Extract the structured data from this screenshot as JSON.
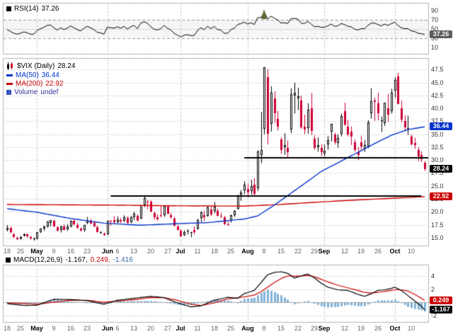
{
  "panels": {
    "rsi": {
      "legend_label": "RSI(14)",
      "legend_value": "37.26",
      "badge": "37.26",
      "axis_ticks": [
        "90",
        "70",
        "50",
        "30",
        "10"
      ]
    },
    "price": {
      "symbol_label": "$VIX (Daily)",
      "symbol_value": "28.24",
      "ma50_label": "MA(50)",
      "ma50_value": "36.44",
      "ma200_label": "MA(200)",
      "ma200_value": "22.92",
      "volume_label": "Volume",
      "volume_value": "undef",
      "badges": {
        "ma50": "36.44",
        "close": "28.24",
        "ma200": "22.92"
      },
      "axis_ticks": [
        "47.5",
        "45.0",
        "42.5",
        "40.0",
        "37.5",
        "35.0",
        "32.5",
        "30.0",
        "27.5",
        "25.0",
        "22.5",
        "20.0",
        "17.5",
        "15.0"
      ]
    },
    "macd": {
      "legend_label": "MACD(12,26,9)",
      "macd_value": "-1.167,",
      "signal_value": "0.249,",
      "hist_value": "-1.416",
      "badges": {
        "signal": "0.249",
        "macd": "-1.167"
      },
      "axis_ticks": [
        "4",
        "2",
        "0",
        "-2"
      ]
    }
  },
  "colors": {
    "up": "#000000",
    "down": "#cc0033",
    "ma50": "#0033cc",
    "ma200": "#cc0000",
    "macd": "#000000",
    "signal": "#cc0000",
    "histogram": "#7fb2d9",
    "rsi": "#000000",
    "trendline": "#000000",
    "badge_gray": "#5c5c5c",
    "badge_black": "#000000",
    "grid": "#e8e8e8",
    "month_grid": "#c9c9c9",
    "minor_grid": "#efefef",
    "panel_border": "#b3b3b3",
    "volume_chip": "#3355bb",
    "arrow": "#556b2f"
  },
  "chart_data": {
    "type": "candlestick",
    "symbol": "$VIX",
    "period": "Daily",
    "axes": {
      "price": {
        "min": 13.6,
        "max": 49.2
      },
      "rsi": {
        "min": 0,
        "max": 100
      },
      "macd": {
        "min": -2.9,
        "max": 5.3
      }
    },
    "x_ticks": [
      {
        "i": 0,
        "label": "18",
        "month": false
      },
      {
        "i": 4,
        "label": "25",
        "month": false
      },
      {
        "i": 9,
        "label": "May",
        "month": true
      },
      {
        "i": 14,
        "label": "9",
        "month": false
      },
      {
        "i": 19,
        "label": "16",
        "month": false
      },
      {
        "i": 24,
        "label": "23",
        "month": false
      },
      {
        "i": 30,
        "label": "Jun",
        "month": true
      },
      {
        "i": 33,
        "label": "6",
        "month": false
      },
      {
        "i": 38,
        "label": "13",
        "month": false
      },
      {
        "i": 43,
        "label": "20",
        "month": false
      },
      {
        "i": 48,
        "label": "27",
        "month": false
      },
      {
        "i": 52,
        "label": "Jul",
        "month": true
      },
      {
        "i": 57,
        "label": "11",
        "month": false
      },
      {
        "i": 62,
        "label": "18",
        "month": false
      },
      {
        "i": 67,
        "label": "25",
        "month": false
      },
      {
        "i": 72,
        "label": "Aug",
        "month": true
      },
      {
        "i": 77,
        "label": "8",
        "month": false
      },
      {
        "i": 82,
        "label": "15",
        "month": false
      },
      {
        "i": 87,
        "label": "22",
        "month": false
      },
      {
        "i": 92,
        "label": "29",
        "month": false
      },
      {
        "i": 95,
        "label": "Sep",
        "month": true
      },
      {
        "i": 101,
        "label": "12",
        "month": false
      },
      {
        "i": 106,
        "label": "19",
        "month": false
      },
      {
        "i": 111,
        "label": "26",
        "month": false
      },
      {
        "i": 116,
        "label": "Oct",
        "month": true
      },
      {
        "i": 121,
        "label": "10",
        "month": false
      }
    ],
    "candles": [
      [
        16.5,
        17.4,
        16.2,
        16.9
      ],
      [
        16.9,
        17.1,
        15.8,
        16.0
      ],
      [
        15.6,
        15.9,
        15.0,
        15.1
      ],
      [
        15.0,
        15.2,
        14.5,
        14.7
      ],
      [
        14.8,
        15.3,
        14.6,
        15.1
      ],
      [
        15.4,
        15.8,
        15.2,
        15.6
      ],
      [
        15.6,
        15.8,
        15.0,
        15.2
      ],
      [
        15.1,
        15.3,
        14.6,
        14.8
      ],
      [
        14.8,
        15.0,
        14.4,
        14.8
      ],
      [
        14.9,
        16.0,
        14.6,
        16.0
      ],
      [
        16.1,
        16.8,
        15.9,
        16.7
      ],
      [
        16.8,
        17.3,
        16.3,
        17.1
      ],
      [
        17.2,
        18.2,
        16.9,
        18.1
      ],
      [
        17.9,
        18.4,
        17.2,
        18.4
      ],
      [
        18.2,
        18.4,
        17.1,
        17.2
      ],
      [
        17.0,
        17.2,
        16.2,
        16.4
      ],
      [
        16.5,
        17.3,
        16.0,
        17.1
      ],
      [
        17.2,
        17.6,
        16.4,
        16.5
      ],
      [
        16.6,
        17.6,
        16.3,
        17.1
      ],
      [
        17.2,
        18.3,
        17.0,
        18.2
      ],
      [
        18.3,
        18.6,
        17.4,
        17.6
      ],
      [
        17.5,
        17.8,
        16.7,
        16.9
      ],
      [
        16.7,
        17.0,
        16.2,
        16.4
      ],
      [
        16.5,
        17.5,
        16.1,
        17.4
      ],
      [
        17.8,
        19.0,
        17.6,
        18.3
      ],
      [
        18.2,
        18.6,
        17.6,
        17.7
      ],
      [
        17.9,
        18.2,
        17.0,
        17.1
      ],
      [
        17.0,
        17.3,
        16.0,
        16.1
      ],
      [
        16.0,
        16.2,
        15.7,
        16.0
      ],
      [
        15.8,
        16.0,
        15.3,
        15.5
      ],
      [
        15.6,
        18.3,
        15.5,
        18.3
      ],
      [
        18.2,
        18.4,
        17.3,
        18.1
      ],
      [
        18.4,
        19.2,
        17.6,
        18.0
      ],
      [
        18.0,
        19.1,
        17.8,
        18.5
      ],
      [
        18.4,
        18.8,
        17.8,
        18.1
      ],
      [
        18.3,
        19.3,
        18.0,
        19.0
      ],
      [
        18.8,
        19.1,
        17.7,
        17.8
      ],
      [
        18.0,
        19.2,
        17.8,
        18.9
      ],
      [
        19.0,
        20.0,
        18.4,
        19.6
      ],
      [
        19.2,
        19.5,
        18.2,
        18.3
      ],
      [
        18.7,
        21.3,
        18.6,
        21.3
      ],
      [
        21.3,
        23.2,
        20.9,
        22.7
      ],
      [
        22.0,
        22.3,
        20.5,
        21.9
      ],
      [
        21.9,
        22.2,
        19.9,
        20.0
      ],
      [
        19.7,
        20.0,
        18.5,
        18.9
      ],
      [
        18.9,
        19.5,
        18.3,
        18.5
      ],
      [
        19.4,
        21.1,
        18.9,
        19.3
      ],
      [
        19.3,
        21.2,
        19.0,
        21.1
      ],
      [
        21.0,
        21.3,
        19.5,
        19.6
      ],
      [
        19.4,
        19.8,
        18.6,
        18.9
      ],
      [
        18.7,
        19.0,
        17.2,
        17.3
      ],
      [
        17.1,
        17.4,
        16.4,
        16.5
      ],
      [
        16.3,
        16.6,
        15.2,
        15.3
      ],
      [
        15.5,
        16.4,
        15.3,
        16.1
      ],
      [
        16.2,
        16.6,
        15.6,
        16.3
      ],
      [
        15.9,
        16.1,
        15.1,
        16.0
      ],
      [
        16.5,
        17.2,
        15.6,
        16.0
      ],
      [
        16.8,
        18.6,
        16.5,
        18.4
      ],
      [
        18.8,
        20.1,
        18.0,
        19.9
      ],
      [
        19.3,
        20.2,
        18.2,
        18.9
      ],
      [
        19.2,
        21.1,
        19.0,
        20.8
      ],
      [
        20.5,
        21.0,
        19.2,
        19.5
      ],
      [
        20.2,
        21.9,
        19.7,
        21.0
      ],
      [
        20.2,
        20.6,
        19.1,
        19.2
      ],
      [
        19.2,
        19.8,
        18.8,
        19.1
      ],
      [
        18.9,
        19.2,
        17.5,
        17.6
      ],
      [
        17.6,
        18.1,
        17.3,
        17.5
      ],
      [
        18.2,
        19.4,
        17.9,
        19.4
      ],
      [
        19.3,
        20.3,
        19.0,
        20.2
      ],
      [
        20.6,
        23.3,
        20.4,
        23.0
      ],
      [
        23.3,
        24.2,
        22.1,
        23.7
      ],
      [
        24.2,
        25.9,
        23.4,
        25.3
      ],
      [
        24.4,
        25.4,
        22.8,
        23.7
      ],
      [
        24.0,
        26.2,
        23.3,
        24.9
      ],
      [
        25.3,
        26.5,
        23.2,
        23.4
      ],
      [
        24.5,
        31.9,
        24.0,
        31.7
      ],
      [
        31.0,
        39.3,
        29.4,
        32.0
      ],
      [
        36.0,
        48.0,
        35.0,
        48.0
      ],
      [
        46.0,
        47.6,
        33.0,
        35.1
      ],
      [
        37.0,
        44.3,
        35.5,
        43.0
      ],
      [
        42.0,
        43.3,
        37.2,
        39.0
      ],
      [
        38.0,
        39.5,
        35.7,
        36.4
      ],
      [
        34.0,
        34.4,
        31.2,
        31.9
      ],
      [
        32.5,
        35.2,
        31.0,
        32.9
      ],
      [
        32.4,
        33.8,
        30.6,
        31.6
      ],
      [
        35.9,
        43.9,
        35.2,
        42.7
      ],
      [
        42.5,
        45.0,
        39.0,
        43.1
      ],
      [
        42.0,
        44.0,
        39.7,
        42.4
      ],
      [
        41.5,
        42.5,
        36.0,
        36.3
      ],
      [
        36.5,
        38.8,
        35.0,
        35.9
      ],
      [
        36.2,
        41.0,
        35.1,
        39.8
      ],
      [
        40.0,
        43.0,
        34.9,
        35.6
      ],
      [
        34.2,
        34.8,
        32.0,
        32.3
      ],
      [
        32.5,
        34.4,
        31.6,
        32.9
      ],
      [
        32.3,
        33.1,
        30.8,
        31.6
      ],
      [
        31.2,
        33.0,
        30.7,
        31.8
      ],
      [
        33.0,
        34.6,
        32.0,
        33.9
      ],
      [
        35.5,
        37.0,
        33.6,
        37.0
      ],
      [
        34.9,
        35.3,
        33.0,
        33.4
      ],
      [
        33.3,
        35.0,
        32.4,
        34.3
      ],
      [
        35.1,
        39.0,
        34.6,
        38.5
      ],
      [
        39.5,
        41.1,
        36.6,
        36.9
      ],
      [
        36.5,
        37.8,
        34.6,
        35.0
      ],
      [
        35.5,
        36.5,
        32.9,
        34.6
      ],
      [
        33.5,
        34.0,
        31.6,
        32.0
      ],
      [
        31.6,
        32.5,
        30.0,
        31.0
      ],
      [
        33.4,
        34.7,
        32.0,
        32.7
      ],
      [
        32.2,
        33.9,
        31.6,
        32.9
      ],
      [
        32.7,
        37.7,
        32.3,
        37.3
      ],
      [
        39.0,
        43.9,
        38.0,
        41.4
      ],
      [
        41.5,
        42.1,
        37.6,
        41.3
      ],
      [
        41.0,
        43.0,
        37.7,
        39.0
      ],
      [
        37.5,
        38.4,
        35.4,
        37.7
      ],
      [
        37.2,
        41.1,
        36.6,
        41.1
      ],
      [
        40.0,
        42.8,
        37.4,
        38.8
      ],
      [
        39.5,
        43.8,
        39.0,
        43.0
      ],
      [
        43.5,
        46.0,
        42.1,
        45.5
      ],
      [
        46.2,
        46.9,
        40.8,
        40.8
      ],
      [
        40.0,
        41.5,
        37.3,
        37.8
      ],
      [
        37.5,
        38.7,
        35.8,
        36.3
      ],
      [
        36.0,
        38.6,
        34.9,
        36.2
      ],
      [
        34.5,
        34.9,
        32.9,
        33.0
      ],
      [
        33.3,
        34.3,
        32.2,
        32.9
      ],
      [
        32.0,
        32.5,
        29.8,
        30.7
      ],
      [
        31.0,
        31.7,
        29.6,
        30.2
      ],
      [
        29.5,
        29.8,
        27.9,
        28.24
      ]
    ],
    "rsi14": [
      48,
      44,
      40,
      38,
      40,
      43,
      41,
      38,
      38,
      46,
      50,
      53,
      57,
      58,
      52,
      47,
      52,
      48,
      51,
      56,
      52,
      48,
      45,
      51,
      55,
      52,
      48,
      42,
      41,
      38,
      53,
      52,
      51,
      54,
      51,
      55,
      49,
      54,
      57,
      50,
      62,
      65,
      62,
      54,
      49,
      47,
      50,
      57,
      51,
      47,
      40,
      36,
      32,
      36,
      37,
      35,
      35,
      46,
      52,
      48,
      55,
      50,
      55,
      48,
      47,
      40,
      40,
      48,
      51,
      59,
      61,
      64,
      60,
      63,
      59,
      74,
      74,
      86,
      71,
      77,
      73,
      69,
      62,
      63,
      61,
      72,
      72,
      71,
      62,
      61,
      66,
      60,
      54,
      55,
      53,
      53,
      56,
      60,
      55,
      56,
      61,
      59,
      55,
      54,
      49,
      47,
      50,
      50,
      57,
      62,
      62,
      59,
      56,
      60,
      57,
      61,
      64,
      57,
      52,
      50,
      50,
      45,
      44,
      40,
      39,
      37.26
    ],
    "ma50": [
      [
        0,
        20.6
      ],
      [
        9,
        19.9
      ],
      [
        19,
        18.7
      ],
      [
        29,
        17.8
      ],
      [
        40,
        17.4
      ],
      [
        51,
        17.7
      ],
      [
        60,
        17.9
      ],
      [
        71,
        18.6
      ],
      [
        75,
        19.2
      ],
      [
        80,
        21.3
      ],
      [
        85,
        23.6
      ],
      [
        90,
        25.9
      ],
      [
        94,
        27.8
      ],
      [
        100,
        29.8
      ],
      [
        105,
        31.5
      ],
      [
        110,
        33.2
      ],
      [
        115,
        34.8
      ],
      [
        120,
        35.9
      ],
      [
        125,
        36.44
      ]
    ],
    "ma200": [
      [
        0,
        21.4
      ],
      [
        29,
        21.3
      ],
      [
        51,
        21.15
      ],
      [
        71,
        21.1
      ],
      [
        80,
        21.35
      ],
      [
        94,
        21.9
      ],
      [
        105,
        22.3
      ],
      [
        115,
        22.6
      ],
      [
        125,
        22.92
      ]
    ],
    "macd": [
      [
        0,
        -0.2
      ],
      [
        5,
        -0.5
      ],
      [
        9,
        -0.45
      ],
      [
        14,
        0.45
      ],
      [
        19,
        0.4
      ],
      [
        24,
        0.25
      ],
      [
        29,
        -0.3
      ],
      [
        33,
        0.3
      ],
      [
        38,
        0.6
      ],
      [
        43,
        0.9
      ],
      [
        47,
        0.7
      ],
      [
        51,
        -0.1
      ],
      [
        55,
        -0.7
      ],
      [
        58,
        -0.55
      ],
      [
        62,
        0.3
      ],
      [
        66,
        0.75
      ],
      [
        69,
        0.6
      ],
      [
        71,
        1.3
      ],
      [
        74,
        1.8
      ],
      [
        76,
        3.0
      ],
      [
        78,
        4.2
      ],
      [
        80,
        4.55
      ],
      [
        82,
        4.65
      ],
      [
        84,
        4.4
      ],
      [
        86,
        3.7
      ],
      [
        88,
        4.0
      ],
      [
        90,
        4.3
      ],
      [
        92,
        3.7
      ],
      [
        94,
        2.9
      ],
      [
        96,
        2.3
      ],
      [
        99,
        1.9
      ],
      [
        102,
        1.8
      ],
      [
        105,
        1.2
      ],
      [
        107,
        0.9
      ],
      [
        109,
        1.3
      ],
      [
        111,
        1.8
      ],
      [
        113,
        1.9
      ],
      [
        115,
        2.1
      ],
      [
        116,
        2.3
      ],
      [
        118,
        1.8
      ],
      [
        120,
        1.0
      ],
      [
        122,
        0.2
      ],
      [
        124,
        -0.6
      ],
      [
        125,
        -1.167
      ]
    ],
    "macd_signal": [
      [
        0,
        -0.1
      ],
      [
        9,
        -0.3
      ],
      [
        14,
        0.0
      ],
      [
        19,
        0.3
      ],
      [
        24,
        0.3
      ],
      [
        29,
        0.0
      ],
      [
        38,
        0.4
      ],
      [
        43,
        0.7
      ],
      [
        47,
        0.7
      ],
      [
        51,
        0.3
      ],
      [
        55,
        -0.3
      ],
      [
        58,
        -0.5
      ],
      [
        62,
        -0.1
      ],
      [
        66,
        0.5
      ],
      [
        71,
        0.8
      ],
      [
        74,
        1.1
      ],
      [
        76,
        1.6
      ],
      [
        78,
        2.3
      ],
      [
        80,
        3.0
      ],
      [
        82,
        3.6
      ],
      [
        84,
        4.0
      ],
      [
        88,
        4.0
      ],
      [
        90,
        4.1
      ],
      [
        92,
        3.9
      ],
      [
        94,
        3.5
      ],
      [
        96,
        3.1
      ],
      [
        99,
        2.6
      ],
      [
        102,
        2.2
      ],
      [
        105,
        1.8
      ],
      [
        107,
        1.5
      ],
      [
        109,
        1.4
      ],
      [
        111,
        1.5
      ],
      [
        113,
        1.65
      ],
      [
        115,
        1.8
      ],
      [
        116,
        1.9
      ],
      [
        118,
        1.9
      ],
      [
        120,
        1.7
      ],
      [
        122,
        1.2
      ],
      [
        124,
        0.6
      ],
      [
        125,
        0.249
      ]
    ],
    "trendlines": [
      {
        "price": 30.5,
        "from": 71,
        "to": 999
      },
      {
        "price": 23.0,
        "from": 31,
        "to": 124
      }
    ],
    "annotations": [
      {
        "type": "up-arrow",
        "panel": "rsi",
        "index": 77
      }
    ],
    "last_values": {
      "close": 28.24,
      "rsi": 37.26,
      "ma50": 36.44,
      "ma200": 22.92,
      "macd": -1.167,
      "signal": 0.249,
      "hist": -1.416
    }
  }
}
